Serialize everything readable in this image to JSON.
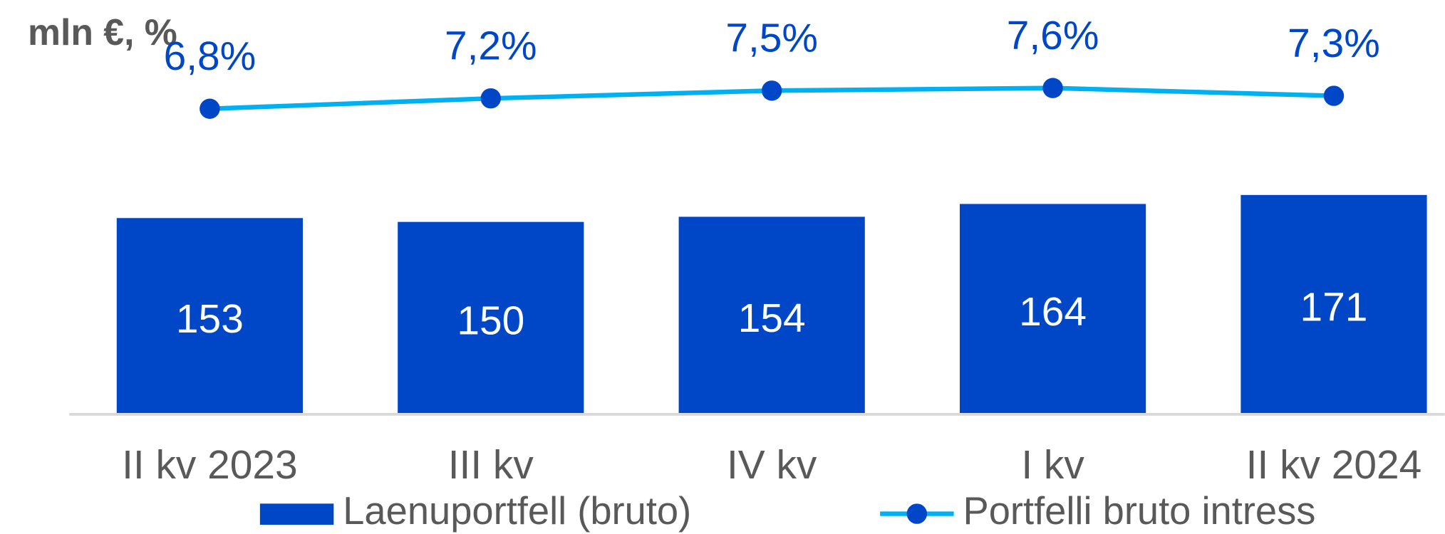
{
  "chart_data": {
    "type": "bar-line",
    "title": "mln €, %",
    "categories": [
      "II kv 2023",
      "III kv",
      "IV kv",
      "I kv",
      "II kv 2024"
    ],
    "ylim": [
      0,
      323
    ],
    "y2lim": [
      -5,
      11
    ],
    "series": [
      {
        "name": "Laenuportfell (bruto)",
        "type": "bar",
        "color": "#0047c8",
        "values": [
          153,
          150,
          154,
          164,
          171
        ]
      },
      {
        "name": "Portfelli bruto intress",
        "type": "line",
        "axis": "y2",
        "color": "#00b0f0",
        "marker_color": "#0047c8",
        "values": [
          6.8,
          7.2,
          7.5,
          7.6,
          7.3
        ],
        "value_labels": [
          "6,8%",
          "7,2%",
          "7,5%",
          "7,6%",
          "7,3%"
        ]
      }
    ]
  }
}
